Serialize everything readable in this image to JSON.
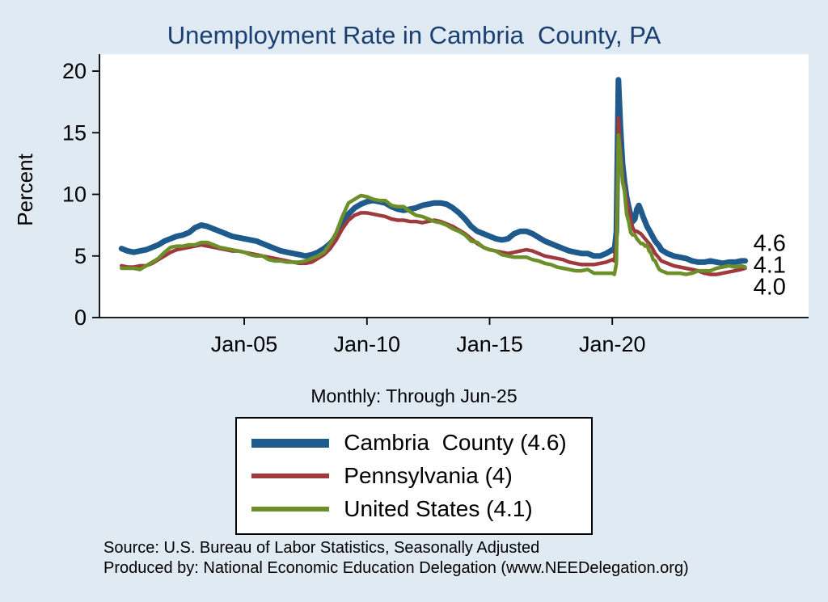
{
  "title": "Unemployment Rate in Cambria  County, PA",
  "subtitle": "Monthly: Through Jun-25",
  "footer": {
    "line1": "Source: U.S. Bureau of Labor Statistics, Seasonally Adjusted",
    "line2": "Produced by: National Economic Education Delegation (www.NEEDelegation.org)"
  },
  "colors": {
    "background": "#e0eaf3",
    "plot_bg": "#ffffff",
    "title": "#1a3f73",
    "axis": "#000000",
    "cambria": "#1e5a8b",
    "pennsylvania": "#9e3a3e",
    "united_states": "#6d8f2a"
  },
  "chart_data": {
    "type": "line",
    "title": "Unemployment Rate in Cambria  County, PA",
    "subtitle": "Monthly: Through Jun-25",
    "xlabel": "",
    "ylabel": "Percent",
    "ylim": [
      0,
      20
    ],
    "xlim": [
      1999.1,
      2028.0
    ],
    "grid": false,
    "legend_position": "below",
    "y_ticks": [
      0,
      5,
      10,
      15,
      20
    ],
    "x_ticks": [
      {
        "value": 2005,
        "label": "Jan-05"
      },
      {
        "value": 2010,
        "label": "Jan-10"
      },
      {
        "value": 2015,
        "label": "Jan-15"
      },
      {
        "value": 2020,
        "label": "Jan-20"
      }
    ],
    "x": [
      2000.0,
      2000.25,
      2000.5,
      2000.75,
      2001.0,
      2001.25,
      2001.5,
      2001.75,
      2002.0,
      2002.25,
      2002.5,
      2002.75,
      2003.0,
      2003.25,
      2003.5,
      2003.75,
      2004.0,
      2004.25,
      2004.5,
      2004.75,
      2005.0,
      2005.25,
      2005.5,
      2005.75,
      2006.0,
      2006.25,
      2006.5,
      2006.75,
      2007.0,
      2007.25,
      2007.5,
      2007.75,
      2008.0,
      2008.25,
      2008.5,
      2008.75,
      2009.0,
      2009.25,
      2009.5,
      2009.75,
      2010.0,
      2010.25,
      2010.5,
      2010.75,
      2011.0,
      2011.25,
      2011.5,
      2011.75,
      2012.0,
      2012.25,
      2012.5,
      2012.75,
      2013.0,
      2013.25,
      2013.5,
      2013.75,
      2014.0,
      2014.25,
      2014.5,
      2014.75,
      2015.0,
      2015.25,
      2015.5,
      2015.75,
      2016.0,
      2016.25,
      2016.5,
      2016.75,
      2017.0,
      2017.25,
      2017.5,
      2017.75,
      2018.0,
      2018.25,
      2018.5,
      2018.75,
      2019.0,
      2019.25,
      2019.5,
      2019.75,
      2020.0,
      2020.083,
      2020.167,
      2020.25,
      2020.333,
      2020.417,
      2020.5,
      2020.583,
      2020.667,
      2020.75,
      2020.833,
      2020.917,
      2021.0,
      2021.083,
      2021.167,
      2021.25,
      2021.333,
      2021.417,
      2021.5,
      2021.583,
      2021.667,
      2021.75,
      2021.833,
      2021.917,
      2022.0,
      2022.25,
      2022.5,
      2022.75,
      2023.0,
      2023.25,
      2023.5,
      2023.75,
      2024.0,
      2024.25,
      2024.5,
      2024.75,
      2025.0,
      2025.25,
      2025.417
    ],
    "series": [
      {
        "name": "Cambria  County",
        "legend_label": "Cambria  County (4.6)",
        "color_key": "cambria",
        "line_width": 7,
        "end_label": "4.6",
        "values": [
          5.6,
          5.4,
          5.3,
          5.4,
          5.5,
          5.7,
          5.9,
          6.2,
          6.4,
          6.6,
          6.7,
          6.9,
          7.3,
          7.5,
          7.4,
          7.2,
          7.0,
          6.8,
          6.6,
          6.5,
          6.4,
          6.3,
          6.2,
          6.0,
          5.8,
          5.6,
          5.4,
          5.3,
          5.2,
          5.1,
          5.0,
          5.1,
          5.3,
          5.6,
          6.0,
          6.6,
          7.6,
          8.4,
          8.9,
          9.2,
          9.4,
          9.5,
          9.4,
          9.3,
          9.0,
          8.8,
          8.7,
          8.8,
          8.9,
          9.1,
          9.2,
          9.3,
          9.3,
          9.2,
          8.9,
          8.5,
          8.0,
          7.4,
          7.0,
          6.8,
          6.6,
          6.4,
          6.3,
          6.4,
          6.8,
          7.0,
          7.0,
          6.8,
          6.5,
          6.2,
          6.0,
          5.8,
          5.6,
          5.4,
          5.3,
          5.2,
          5.2,
          5.0,
          5.0,
          5.2,
          5.5,
          5.4,
          7.0,
          19.3,
          15.5,
          12.5,
          11.0,
          9.8,
          9.0,
          8.3,
          7.8,
          8.0,
          8.8,
          9.1,
          8.7,
          8.2,
          7.8,
          7.4,
          7.1,
          6.8,
          6.5,
          6.2,
          6.0,
          5.8,
          5.5,
          5.2,
          5.0,
          4.9,
          4.8,
          4.6,
          4.5,
          4.5,
          4.6,
          4.5,
          4.4,
          4.5,
          4.5,
          4.6,
          4.6
        ]
      },
      {
        "name": "Pennsylvania",
        "legend_label": "Pennsylvania (4)",
        "color_key": "pennsylvania",
        "line_width": 4.5,
        "end_label": "4.0",
        "values": [
          4.2,
          4.1,
          4.1,
          4.2,
          4.2,
          4.4,
          4.7,
          5.0,
          5.3,
          5.5,
          5.6,
          5.7,
          5.8,
          5.9,
          5.8,
          5.7,
          5.6,
          5.5,
          5.4,
          5.4,
          5.3,
          5.2,
          5.1,
          5.0,
          4.9,
          4.8,
          4.7,
          4.6,
          4.5,
          4.4,
          4.4,
          4.5,
          4.8,
          5.1,
          5.6,
          6.3,
          7.2,
          7.9,
          8.3,
          8.5,
          8.5,
          8.4,
          8.3,
          8.2,
          8.0,
          7.9,
          7.9,
          7.8,
          7.8,
          7.7,
          7.8,
          7.9,
          7.8,
          7.6,
          7.4,
          7.1,
          6.8,
          6.4,
          6.0,
          5.7,
          5.5,
          5.4,
          5.3,
          5.2,
          5.3,
          5.4,
          5.5,
          5.4,
          5.2,
          5.0,
          4.9,
          4.8,
          4.7,
          4.5,
          4.4,
          4.3,
          4.3,
          4.3,
          4.4,
          4.5,
          4.7,
          4.6,
          6.0,
          16.2,
          13.5,
          11.5,
          10.5,
          9.5,
          8.7,
          7.9,
          7.3,
          7.0,
          7.0,
          6.9,
          6.8,
          6.6,
          6.4,
          6.2,
          6.0,
          5.8,
          5.5,
          5.2,
          5.0,
          4.8,
          4.6,
          4.4,
          4.2,
          4.1,
          4.0,
          3.9,
          3.8,
          3.6,
          3.5,
          3.5,
          3.6,
          3.7,
          3.8,
          3.9,
          4.0
        ]
      },
      {
        "name": "United States",
        "legend_label": "United States (4.1)",
        "color_key": "united_states",
        "line_width": 4.5,
        "end_label": "4.1",
        "values": [
          4.0,
          4.0,
          4.0,
          3.9,
          4.2,
          4.5,
          4.8,
          5.3,
          5.7,
          5.8,
          5.8,
          5.9,
          5.9,
          6.1,
          6.1,
          5.9,
          5.7,
          5.6,
          5.5,
          5.4,
          5.3,
          5.1,
          5.0,
          5.0,
          4.7,
          4.6,
          4.6,
          4.5,
          4.5,
          4.5,
          4.6,
          4.8,
          5.0,
          5.3,
          6.0,
          6.9,
          8.2,
          9.3,
          9.6,
          9.9,
          9.8,
          9.6,
          9.5,
          9.5,
          9.1,
          9.0,
          9.0,
          8.6,
          8.3,
          8.2,
          8.0,
          7.8,
          7.7,
          7.5,
          7.2,
          7.0,
          6.7,
          6.2,
          6.1,
          5.7,
          5.5,
          5.4,
          5.1,
          5.0,
          4.9,
          4.9,
          4.9,
          4.7,
          4.6,
          4.4,
          4.3,
          4.1,
          4.0,
          3.9,
          3.8,
          3.8,
          3.9,
          3.6,
          3.6,
          3.6,
          3.6,
          3.5,
          4.4,
          14.8,
          13.2,
          11.0,
          10.2,
          8.4,
          7.8,
          6.9,
          6.7,
          6.7,
          6.4,
          6.2,
          6.0,
          6.0,
          5.8,
          5.9,
          5.4,
          5.2,
          4.7,
          4.6,
          4.2,
          3.9,
          3.8,
          3.6,
          3.6,
          3.6,
          3.5,
          3.6,
          3.8,
          3.8,
          3.8,
          4.0,
          4.1,
          4.2,
          4.1,
          4.2,
          4.1
        ]
      }
    ]
  }
}
